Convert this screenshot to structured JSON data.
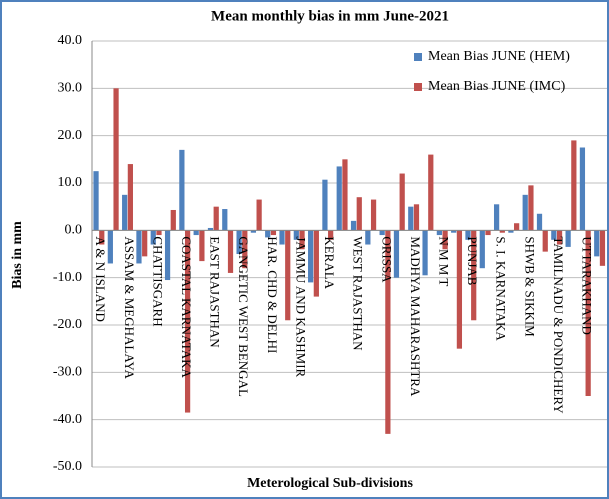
{
  "chart_data": {
    "type": "bar",
    "title": "Mean monthly bias in mm June-2021",
    "x_label": "Meterological  Sub-divisions",
    "y_label": "Bias in mm",
    "categories": [
      "A & N ISLAND",
      null,
      "ASSAM & MEGHALAYA",
      null,
      "CHATTISGARH",
      null,
      "COASTAL KARNATAKA",
      null,
      "EAST RAJASTHAN",
      null,
      "GANGETIC WEST BENGAL",
      null,
      "HAR. CHD & DELHI",
      null,
      "JAMMU AND KASHMIR",
      null,
      "KERALA",
      null,
      "WEST RAJASTHAN",
      null,
      "ORISSA",
      null,
      "MADHYA MAHARASHTRA",
      null,
      "N M M T",
      null,
      "PUNJAB",
      null,
      "S. I. KARNATAKA",
      null,
      "SHWB & SIKKIM",
      null,
      "TAMILNADU & PONDICHERY",
      null,
      "UTTARAKHAND",
      null
    ],
    "series": [
      {
        "name": "Mean Bias JUNE (HEM)",
        "color": "#4f81bd",
        "values": [
          12.5,
          -7,
          7.5,
          -7,
          -3,
          -10.5,
          17,
          -1,
          0.5,
          4.5,
          -5,
          -0.5,
          -1.5,
          -3,
          -2,
          -11,
          10.7,
          13.5,
          2,
          -3,
          -1,
          -10,
          5,
          -9.5,
          -1,
          -0.5,
          -2,
          -8,
          5.5,
          -0.5,
          7.5,
          3.5,
          -2,
          -3.5,
          17.5,
          -5.5
        ]
      },
      {
        "name": "Mean Bias JUNE (IMC)",
        "color": "#c0504d",
        "values": [
          -3,
          30,
          14,
          -5.5,
          -1,
          4.3,
          -38.5,
          -6.5,
          5,
          -9,
          -8,
          6.5,
          -1,
          -19,
          -4,
          -14,
          -2,
          15,
          7,
          6.5,
          -43,
          12,
          5.5,
          16,
          -4,
          -25,
          -19,
          -1,
          -0.5,
          1.5,
          9.5,
          -4.5,
          -3,
          19,
          -35,
          -7.5
        ]
      }
    ],
    "ylim": [
      -50,
      40
    ],
    "yticks": [
      {
        "value": -50,
        "label": "-50.0"
      },
      {
        "value": -40,
        "label": "-40.0"
      },
      {
        "value": -30,
        "label": "-30.0"
      },
      {
        "value": -20,
        "label": "-20.0"
      },
      {
        "value": -10,
        "label": "-10.0"
      },
      {
        "value": 0,
        "label": "0.0"
      },
      {
        "value": 10,
        "label": "10.0"
      },
      {
        "value": 20,
        "label": "20.0"
      },
      {
        "value": 30,
        "label": "30.0"
      },
      {
        "value": 40,
        "label": "40.0"
      }
    ],
    "grid": true,
    "legend": "upper right"
  }
}
